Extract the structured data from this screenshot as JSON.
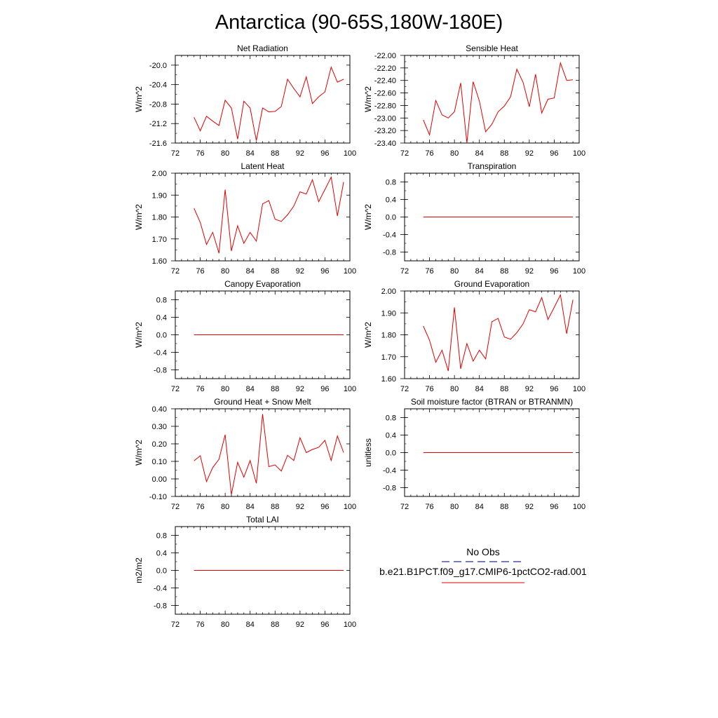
{
  "page": {
    "title": "Antarctica (90-65S,180W-180E)"
  },
  "colors": {
    "series": "#e00000",
    "obs": "#2a2a9a",
    "axis": "#000000"
  },
  "legend": {
    "obs_label": "No Obs",
    "model_label": "b.e21.B1PCT.f09_g17.CMIP6-1pctCO2-rad.001"
  },
  "chart_data": [
    {
      "type": "line",
      "title": "Net Radiation",
      "ylabel": "W/m^2",
      "xlim": [
        72,
        100
      ],
      "xticks": [
        72,
        76,
        80,
        84,
        88,
        92,
        96,
        100
      ],
      "ylim": [
        -21.6,
        -19.8
      ],
      "yticks": [
        -21.6,
        -21.2,
        -20.8,
        -20.4,
        -20.0
      ],
      "ytick_labels": [
        "-21.6",
        "-21.2",
        "-20.8",
        "-20.4",
        "-20.0"
      ],
      "x": [
        75,
        76,
        77,
        78,
        79,
        80,
        81,
        82,
        83,
        84,
        85,
        86,
        87,
        88,
        89,
        90,
        91,
        92,
        93,
        94,
        95,
        96,
        97,
        98,
        99
      ],
      "series": [
        {
          "values": [
            -21.07,
            -21.35,
            -21.05,
            -21.15,
            -21.24,
            -20.72,
            -20.88,
            -21.52,
            -20.74,
            -20.88,
            -21.55,
            -20.88,
            -20.96,
            -20.95,
            -20.85,
            -20.29,
            -20.48,
            -20.65,
            -20.24,
            -20.79,
            -20.65,
            -20.55,
            -20.04,
            -20.35,
            -20.29
          ]
        }
      ]
    },
    {
      "type": "line",
      "title": "Sensible Heat",
      "ylabel": "W/m^2",
      "xlim": [
        72,
        100
      ],
      "xticks": [
        72,
        76,
        80,
        84,
        88,
        92,
        96,
        100
      ],
      "ylim": [
        -23.4,
        -22.0
      ],
      "yticks": [
        -23.4,
        -23.2,
        -23.0,
        -22.8,
        -22.6,
        -22.4,
        -22.2,
        -22.0
      ],
      "ytick_labels": [
        "-23.40",
        "-23.20",
        "-23.00",
        "-22.80",
        "-22.60",
        "-22.40",
        "-22.20",
        "-22.00"
      ],
      "x": [
        75,
        76,
        77,
        78,
        79,
        80,
        81,
        82,
        83,
        84,
        85,
        86,
        87,
        88,
        89,
        90,
        91,
        92,
        93,
        94,
        95,
        96,
        97,
        98,
        99
      ],
      "series": [
        {
          "values": [
            -23.03,
            -23.27,
            -22.72,
            -22.95,
            -23.0,
            -22.9,
            -22.44,
            -23.4,
            -22.42,
            -22.73,
            -23.22,
            -23.1,
            -22.9,
            -22.81,
            -22.66,
            -22.22,
            -22.43,
            -22.82,
            -22.3,
            -22.92,
            -22.7,
            -22.68,
            -22.12,
            -22.4,
            -22.39
          ]
        }
      ]
    },
    {
      "type": "line",
      "title": "Latent Heat",
      "ylabel": "W/m^2",
      "xlim": [
        72,
        100
      ],
      "xticks": [
        72,
        76,
        80,
        84,
        88,
        92,
        96,
        100
      ],
      "ylim": [
        1.6,
        2.0
      ],
      "yticks": [
        1.6,
        1.7,
        1.8,
        1.9,
        2.0
      ],
      "ytick_labels": [
        "1.60",
        "1.70",
        "1.80",
        "1.90",
        "2.00"
      ],
      "x": [
        75,
        76,
        77,
        78,
        79,
        80,
        81,
        82,
        83,
        84,
        85,
        86,
        87,
        88,
        89,
        90,
        91,
        92,
        93,
        94,
        95,
        96,
        97,
        98,
        99
      ],
      "series": [
        {
          "values": [
            1.84,
            1.775,
            1.675,
            1.73,
            1.635,
            1.925,
            1.645,
            1.76,
            1.68,
            1.73,
            1.69,
            1.86,
            1.875,
            1.79,
            1.78,
            1.81,
            1.85,
            1.915,
            1.905,
            1.97,
            1.87,
            1.925,
            1.982,
            1.805,
            1.96
          ]
        }
      ]
    },
    {
      "type": "line",
      "title": "Transpiration",
      "ylabel": "W/m^2",
      "xlim": [
        72,
        100
      ],
      "xticks": [
        72,
        76,
        80,
        84,
        88,
        92,
        96,
        100
      ],
      "ylim": [
        -1.0,
        1.0
      ],
      "yticks": [
        -0.8,
        -0.4,
        0.0,
        0.4,
        0.8
      ],
      "ytick_labels": [
        "-0.8",
        "-0.4",
        "0.0",
        "0.4",
        "0.8"
      ],
      "x": [
        75,
        76,
        77,
        78,
        79,
        80,
        81,
        82,
        83,
        84,
        85,
        86,
        87,
        88,
        89,
        90,
        91,
        92,
        93,
        94,
        95,
        96,
        97,
        98,
        99
      ],
      "series": [
        {
          "values": [
            0,
            0,
            0,
            0,
            0,
            0,
            0,
            0,
            0,
            0,
            0,
            0,
            0,
            0,
            0,
            0,
            0,
            0,
            0,
            0,
            0,
            0,
            0,
            0,
            0
          ]
        }
      ]
    },
    {
      "type": "line",
      "title": "Canopy Evaporation",
      "ylabel": "W/m^2",
      "xlim": [
        72,
        100
      ],
      "xticks": [
        72,
        76,
        80,
        84,
        88,
        92,
        96,
        100
      ],
      "ylim": [
        -1.0,
        1.0
      ],
      "yticks": [
        -0.8,
        -0.4,
        0.0,
        0.4,
        0.8
      ],
      "ytick_labels": [
        "-0.8",
        "-0.4",
        "0.0",
        "0.4",
        "0.8"
      ],
      "x": [
        75,
        76,
        77,
        78,
        79,
        80,
        81,
        82,
        83,
        84,
        85,
        86,
        87,
        88,
        89,
        90,
        91,
        92,
        93,
        94,
        95,
        96,
        97,
        98,
        99
      ],
      "series": [
        {
          "values": [
            0,
            0,
            0,
            0,
            0,
            0,
            0,
            0,
            0,
            0,
            0,
            0,
            0,
            0,
            0,
            0,
            0,
            0,
            0,
            0,
            0,
            0,
            0,
            0,
            0
          ]
        }
      ]
    },
    {
      "type": "line",
      "title": "Ground Evaporation",
      "ylabel": "W/m^2",
      "xlim": [
        72,
        100
      ],
      "xticks": [
        72,
        76,
        80,
        84,
        88,
        92,
        96,
        100
      ],
      "ylim": [
        1.6,
        2.0
      ],
      "yticks": [
        1.6,
        1.7,
        1.8,
        1.9,
        2.0
      ],
      "ytick_labels": [
        "1.60",
        "1.70",
        "1.80",
        "1.90",
        "2.00"
      ],
      "x": [
        75,
        76,
        77,
        78,
        79,
        80,
        81,
        82,
        83,
        84,
        85,
        86,
        87,
        88,
        89,
        90,
        91,
        92,
        93,
        94,
        95,
        96,
        97,
        98,
        99
      ],
      "series": [
        {
          "values": [
            1.84,
            1.775,
            1.675,
            1.73,
            1.635,
            1.925,
            1.645,
            1.76,
            1.68,
            1.73,
            1.69,
            1.86,
            1.875,
            1.79,
            1.78,
            1.81,
            1.85,
            1.915,
            1.905,
            1.97,
            1.87,
            1.925,
            1.982,
            1.805,
            1.96
          ]
        }
      ]
    },
    {
      "type": "line",
      "title": "Ground Heat + Snow Melt",
      "ylabel": "W/m^2",
      "xlim": [
        72,
        100
      ],
      "xticks": [
        72,
        76,
        80,
        84,
        88,
        92,
        96,
        100
      ],
      "ylim": [
        -0.1,
        0.4
      ],
      "yticks": [
        -0.1,
        0.0,
        0.1,
        0.2,
        0.3,
        0.4
      ],
      "ytick_labels": [
        "-0.10",
        "0.00",
        "0.10",
        "0.20",
        "0.30",
        "0.40"
      ],
      "x": [
        75,
        76,
        77,
        78,
        79,
        80,
        81,
        82,
        83,
        84,
        85,
        86,
        87,
        88,
        89,
        90,
        91,
        92,
        93,
        94,
        95,
        96,
        97,
        98,
        99
      ],
      "series": [
        {
          "values": [
            0.103,
            0.132,
            -0.015,
            0.065,
            0.112,
            0.252,
            -0.09,
            0.095,
            0.01,
            0.105,
            -0.025,
            0.37,
            0.07,
            0.08,
            0.045,
            0.135,
            0.105,
            0.235,
            0.15,
            0.168,
            0.18,
            0.22,
            0.105,
            0.245,
            0.15
          ]
        }
      ]
    },
    {
      "type": "line",
      "title": "Soil moisture factor (BTRAN or BTRANMN)",
      "ylabel": "unitless",
      "xlim": [
        72,
        100
      ],
      "xticks": [
        72,
        76,
        80,
        84,
        88,
        92,
        96,
        100
      ],
      "ylim": [
        -1.0,
        1.0
      ],
      "yticks": [
        -0.8,
        -0.4,
        0.0,
        0.4,
        0.8
      ],
      "ytick_labels": [
        "-0.8",
        "-0.4",
        "0.0",
        "0.4",
        "0.8"
      ],
      "x": [
        75,
        76,
        77,
        78,
        79,
        80,
        81,
        82,
        83,
        84,
        85,
        86,
        87,
        88,
        89,
        90,
        91,
        92,
        93,
        94,
        95,
        96,
        97,
        98,
        99
      ],
      "series": [
        {
          "values": [
            0,
            0,
            0,
            0,
            0,
            0,
            0,
            0,
            0,
            0,
            0,
            0,
            0,
            0,
            0,
            0,
            0,
            0,
            0,
            0,
            0,
            0,
            0,
            0,
            0
          ]
        }
      ]
    },
    {
      "type": "line",
      "title": "Total LAI",
      "ylabel": "m2/m2",
      "xlim": [
        72,
        100
      ],
      "xticks": [
        72,
        76,
        80,
        84,
        88,
        92,
        96,
        100
      ],
      "ylim": [
        -1.0,
        1.0
      ],
      "yticks": [
        -0.8,
        -0.4,
        0.0,
        0.4,
        0.8
      ],
      "ytick_labels": [
        "-0.8",
        "-0.4",
        "0.0",
        "0.4",
        "0.8"
      ],
      "x": [
        75,
        76,
        77,
        78,
        79,
        80,
        81,
        82,
        83,
        84,
        85,
        86,
        87,
        88,
        89,
        90,
        91,
        92,
        93,
        94,
        95,
        96,
        97,
        98,
        99
      ],
      "series": [
        {
          "values": [
            0,
            0,
            0,
            0,
            0,
            0,
            0,
            0,
            0,
            0,
            0,
            0,
            0,
            0,
            0,
            0,
            0,
            0,
            0,
            0,
            0,
            0,
            0,
            0,
            0
          ]
        }
      ]
    }
  ]
}
